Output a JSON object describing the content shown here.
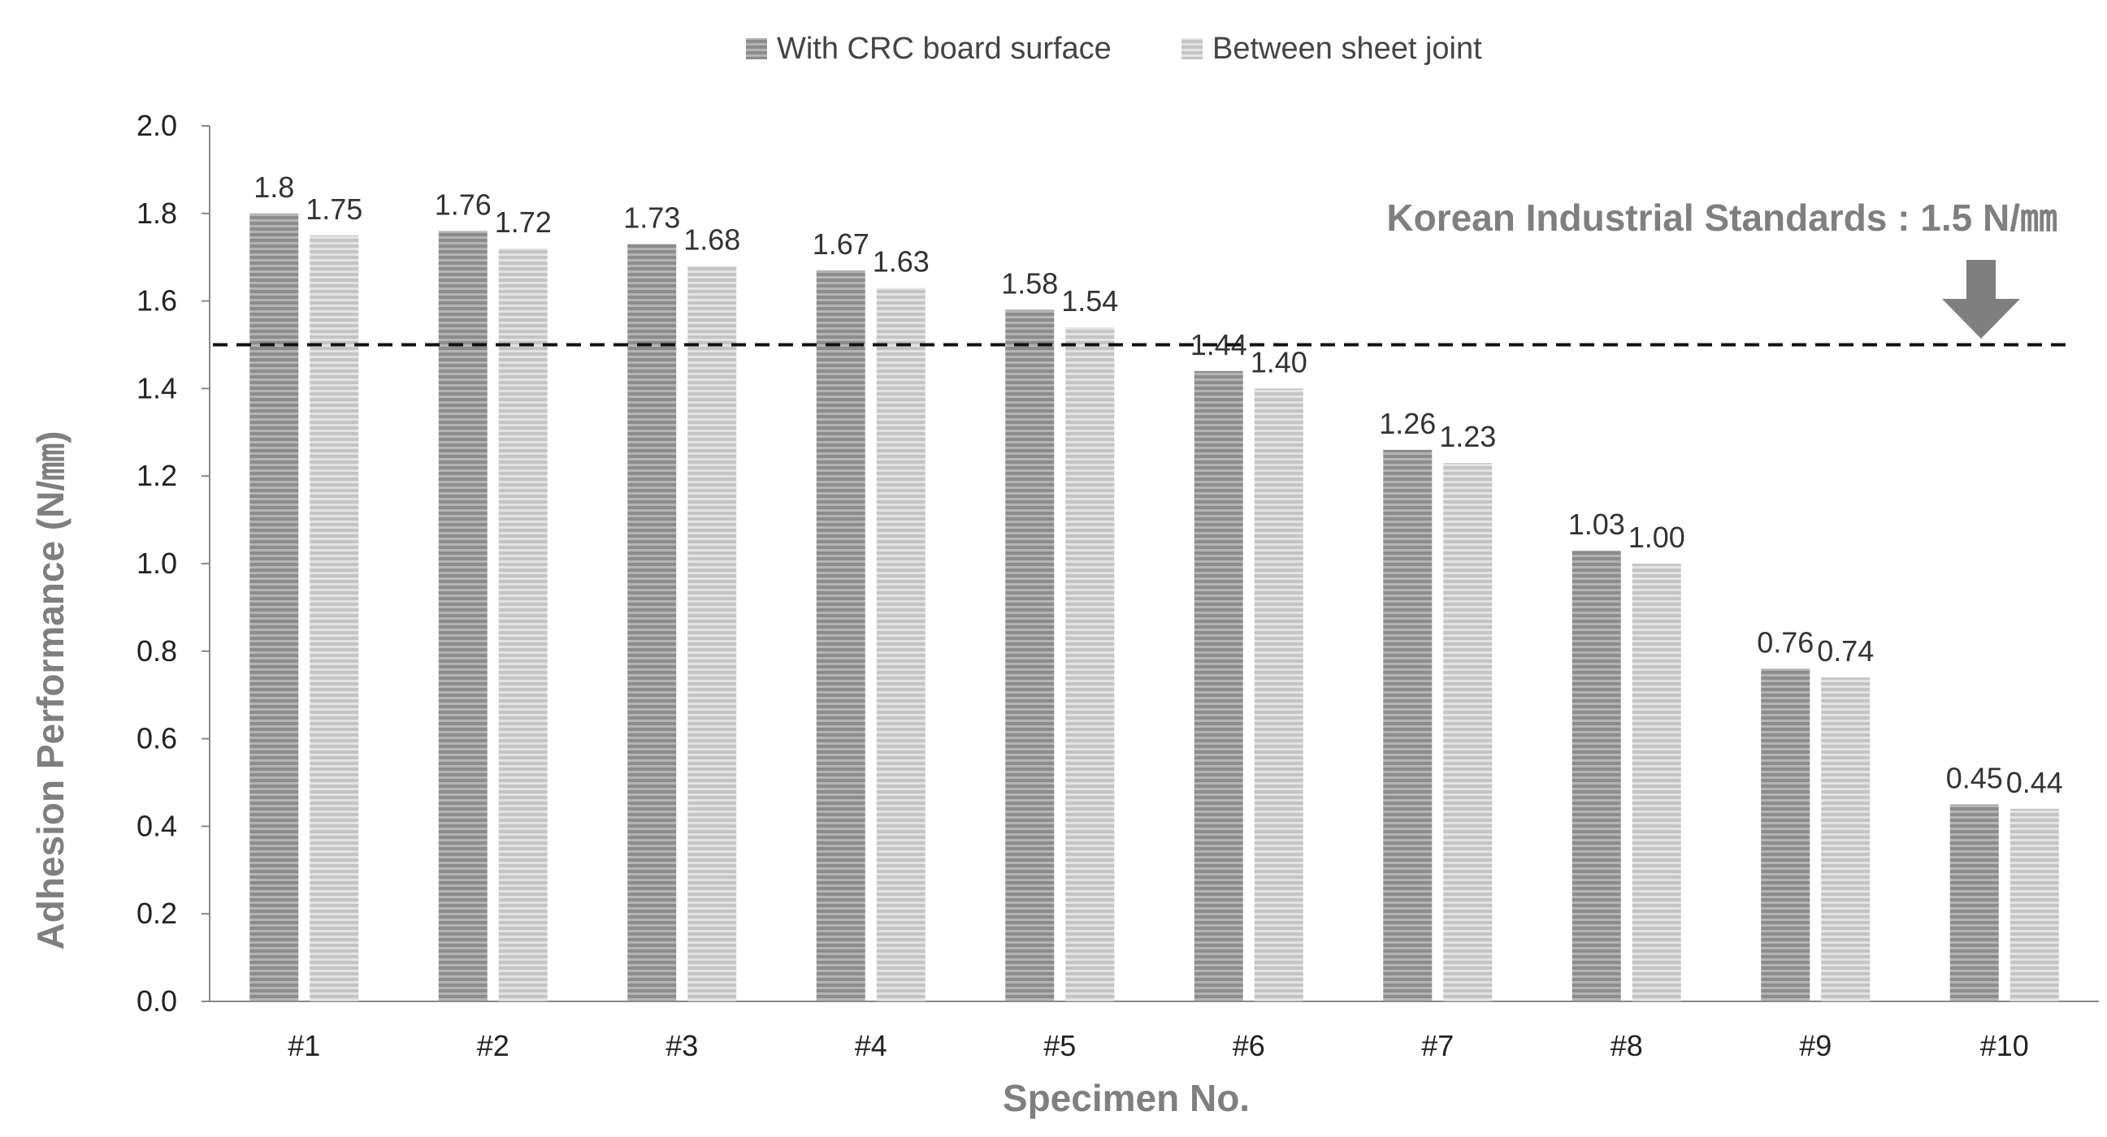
{
  "chart_data": {
    "type": "bar",
    "title": "",
    "xlabel": "Specimen No.",
    "ylabel": "Adhesion Performance (N/㎜)",
    "categories": [
      "#1",
      "#2",
      "#3",
      "#4",
      "#5",
      "#6",
      "#7",
      "#8",
      "#9",
      "#10"
    ],
    "series": [
      {
        "name": "With CRC board surface",
        "values": [
          1.8,
          1.76,
          1.73,
          1.67,
          1.58,
          1.44,
          1.26,
          1.03,
          0.76,
          0.45
        ],
        "labels": [
          "1.8",
          "1.76",
          "1.73",
          "1.67",
          "1.58",
          "1.44",
          "1.26",
          "1.03",
          "0.76",
          "0.45"
        ],
        "color": "#8c8c8c",
        "stripe_color": "#b4b4b4"
      },
      {
        "name": "Between sheet joint",
        "values": [
          1.75,
          1.72,
          1.68,
          1.63,
          1.54,
          1.4,
          1.23,
          1.0,
          0.74,
          0.44
        ],
        "labels": [
          "1.75",
          "1.72",
          "1.68",
          "1.63",
          "1.54",
          "1.40",
          "1.23",
          "1.00",
          "0.74",
          "0.44"
        ],
        "color": "#c4c4c4",
        "stripe_color": "#e3e3e3"
      }
    ],
    "ylim": [
      0,
      2.0
    ],
    "yticks": [
      "0.0",
      "0.2",
      "0.4",
      "0.6",
      "0.8",
      "1.0",
      "1.2",
      "1.4",
      "1.6",
      "1.8",
      "2.0"
    ],
    "ytick_step": 0.2,
    "grid": false,
    "legend_position": "top-center",
    "reference_line": {
      "value": 1.5,
      "style": "dashed",
      "color": "#111111",
      "label": "Korean Industrial Standards : 1.5 N/㎜"
    },
    "colors": {
      "axis": "#888888",
      "axis_title": "#7f7f7f",
      "arrow": "#7f7f7f"
    }
  }
}
